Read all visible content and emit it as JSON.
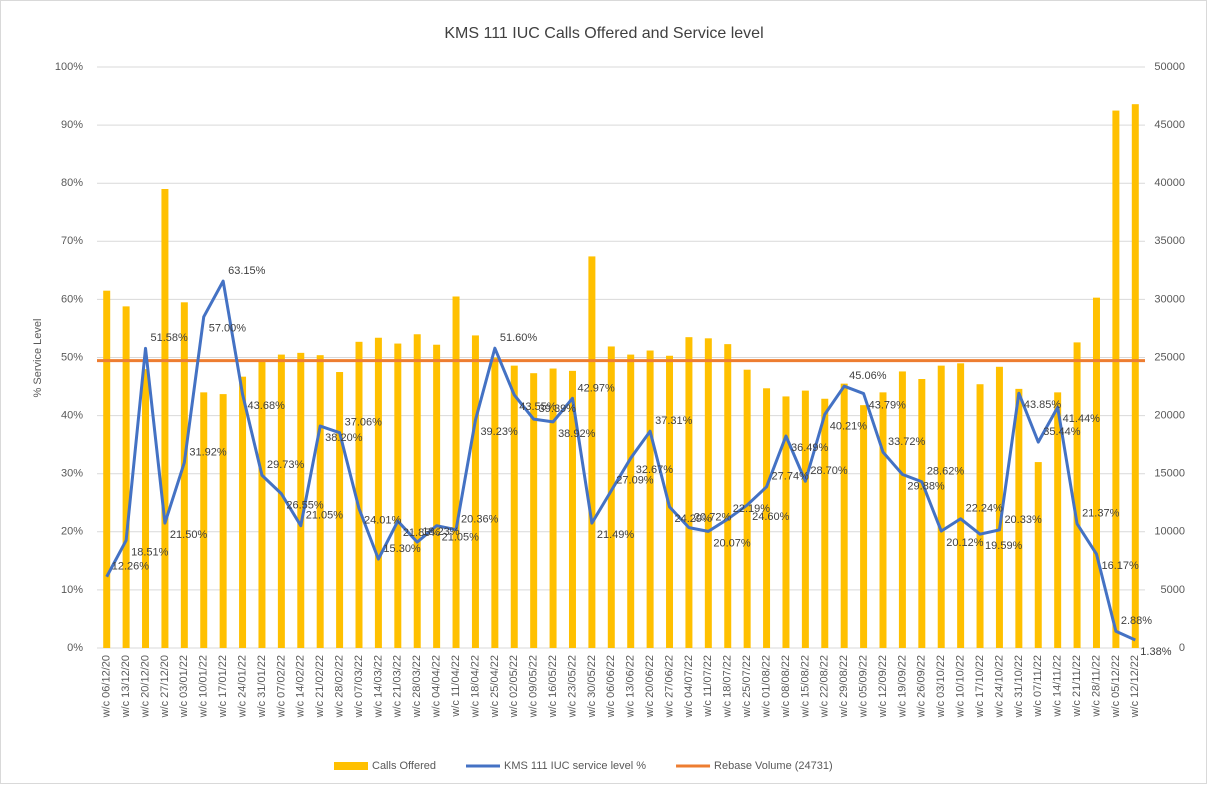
{
  "chart_data": {
    "type": "bar-line",
    "title": "KMS 111 IUC Calls Offered and Service level",
    "y_label": "% Service Level",
    "categories": [
      "w/c 06/12/20",
      "w/c 13/12/20",
      "w/c 20/12/20",
      "w/c 27/12/20",
      "w/c 03/01/22",
      "w/c 10/01/22",
      "w/c 17/01/22",
      "w/c 24/01/22",
      "w/c 31/01/22",
      "w/c 07/02/22",
      "w/c 14/02/22",
      "w/c 21/02/22",
      "w/c 28/02/22",
      "w/c 07/03/22",
      "w/c 14/03/22",
      "w/c 21/03/22",
      "w/c 28/03/22",
      "w/c 04/04/22",
      "w/c 11/04/22",
      "w/c 18/04/22",
      "w/c 25/04/22",
      "w/c 02/05/22",
      "w/c 09/05/22",
      "w/c 16/05/22",
      "w/c 23/05/22",
      "w/c 30/05/22",
      "w/c 06/06/22",
      "w/c 13/06/22",
      "w/c 20/06/22",
      "w/c 27/06/22",
      "w/c 04/07/22",
      "w/c 11/07/22",
      "w/c 18/07/22",
      "w/c 25/07/22",
      "w/c 01/08/22",
      "w/c 08/08/22",
      "w/c 15/08/22",
      "w/c 22/08/22",
      "w/c 29/08/22",
      "w/c 05/09/22",
      "w/c 12/09/22",
      "w/c 19/09/22",
      "w/c 26/09/22",
      "w/c 03/10/22",
      "w/c 10/10/22",
      "w/c 17/10/22",
      "w/c 24/10/22",
      "w/c 31/10/22",
      "w/c 07/11/22",
      "w/c 14/11/22",
      "w/c 21/11/22",
      "w/c 28/11/22",
      "w/c 05/12/22",
      "w/c 12/12/22"
    ],
    "series": [
      {
        "name": "Calls Offered",
        "type": "bar",
        "axis": "y2",
        "color": "#FFC000",
        "values": [
          30750,
          29400,
          24000,
          39500,
          29750,
          22000,
          21850,
          23350,
          24750,
          25250,
          25400,
          25200,
          23750,
          26350,
          26700,
          26200,
          27000,
          26100,
          30250,
          26900,
          25000,
          24300,
          23650,
          24050,
          23850,
          33700,
          25950,
          25250,
          25600,
          25150,
          26750,
          26650,
          26150,
          23950,
          22350,
          21650,
          22150,
          21450,
          22750,
          20900,
          22000,
          23800,
          23150,
          24300,
          24500,
          22700,
          24200,
          22300,
          16000,
          22000,
          26300,
          30150,
          46250,
          46800
        ]
      },
      {
        "name": "KMS 111 IUC service level %",
        "type": "line",
        "axis": "y",
        "color": "#4472C4",
        "values": [
          12.26,
          18.51,
          51.58,
          21.5,
          31.92,
          57.0,
          63.15,
          43.68,
          29.73,
          26.55,
          21.05,
          38.2,
          37.06,
          24.01,
          15.3,
          21.85,
          18.23,
          21.05,
          20.36,
          39.23,
          51.6,
          43.55,
          39.39,
          38.92,
          42.97,
          21.49,
          27.09,
          32.67,
          37.31,
          24.29,
          20.72,
          20.07,
          22.19,
          24.6,
          27.74,
          36.49,
          28.7,
          40.21,
          45.06,
          43.79,
          33.72,
          29.88,
          28.62,
          20.12,
          22.24,
          19.59,
          20.33,
          43.85,
          35.44,
          41.44,
          21.37,
          16.17,
          2.88,
          1.38
        ],
        "value_labels": [
          "12.26%",
          "18.51%",
          "51.58%",
          "21.50%",
          "31.92%",
          "57.00%",
          "63.15%",
          "43.68%",
          "29.73%",
          "26.55%",
          "21.05%",
          "38.20%",
          "37.06%",
          "24.01%",
          "15.30%",
          "21.85%",
          "18.23%",
          "21.05%",
          "20.36%",
          "39.23%",
          "51.60%",
          "43.55%",
          "39.39%",
          "38.92%",
          "42.97%",
          "21.49%",
          "27.09%",
          "32.67%",
          "37.31%",
          "24.29%",
          "20.72%",
          "20.07%",
          "22.19%",
          "24.60%",
          "27.74%",
          "36.49%",
          "28.70%",
          "40.21%",
          "45.06%",
          "43.79%",
          "33.72%",
          "29.88%",
          "28.62%",
          "20.12%",
          "22.24%",
          "19.59%",
          "20.33%",
          "43.85%",
          "35.44%",
          "41.44%",
          "21.37%",
          "16.17%",
          "2.88%",
          "1.38%"
        ]
      },
      {
        "name": "Rebase Volume (24731)",
        "type": "hline",
        "axis": "y2",
        "color": "#ED7D31",
        "value": 24731
      }
    ],
    "ylim": [
      0,
      100
    ],
    "yticks": [
      {
        "value": 0,
        "label": "0%"
      },
      {
        "value": 10,
        "label": "10%"
      },
      {
        "value": 20,
        "label": "20%"
      },
      {
        "value": 30,
        "label": "30%"
      },
      {
        "value": 40,
        "label": "40%"
      },
      {
        "value": 50,
        "label": "50%"
      },
      {
        "value": 60,
        "label": "60%"
      },
      {
        "value": 70,
        "label": "70%"
      },
      {
        "value": 80,
        "label": "80%"
      },
      {
        "value": 90,
        "label": "90%"
      },
      {
        "value": 100,
        "label": "100%"
      }
    ],
    "y2lim": [
      0,
      50000
    ],
    "y2ticks": [
      0,
      5000,
      10000,
      15000,
      20000,
      25000,
      30000,
      35000,
      40000,
      45000,
      50000
    ],
    "grid": true,
    "legend": "bottom"
  }
}
